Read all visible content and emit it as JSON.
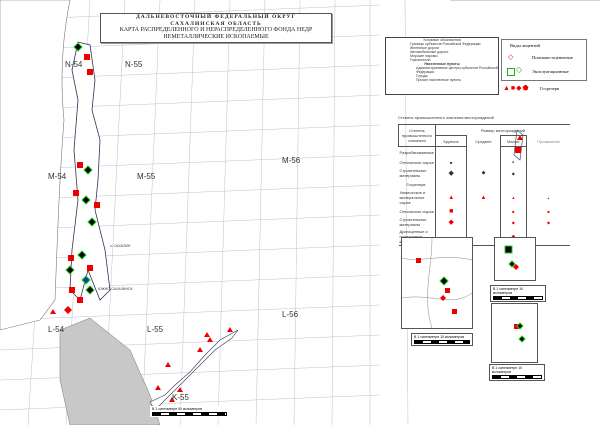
{
  "title": {
    "line1": "ДАЛЬНЕВОСТОЧНЫЙ ФЕДЕРАЛЬНЫЙ ОКРУГ",
    "line2": "САХАЛИНСКАЯ ОБЛАСТЬ",
    "line3": "КАРТА РАСПРЕДЕЛЕННОГО И НЕРАСПРЕДЕЛЕННОГО ФОНДА НЕДР",
    "line4": "НЕМЕТАЛЛИЧЕСКИЕ ИСКОПАЕМЫЕ"
  },
  "sheets": [
    "N-54",
    "N-55",
    "M-54",
    "M-55",
    "M-56",
    "L-54",
    "L-55",
    "L-56",
    "K-55"
  ],
  "place_labels": {
    "sakhalinsk": "ЮЖНО-САХАЛИНСК",
    "gulf": "з. САХАЛИН"
  },
  "legend": {
    "title": "Условные обозначения",
    "items": [
      "Границы субъектов Российской Федерации",
      "Железные дороги",
      "Автомобильные дороги",
      "Морские паромы",
      "Горизонтали"
    ],
    "settlements_title": "Населенные пункты",
    "settlements": [
      "Административные центры субъектов Российской Федерации",
      "Города",
      "Прочие населенные пункты"
    ]
  },
  "licenses": {
    "title": "Виды лицензий",
    "exploration": "Поисково-оценочные",
    "production": "Эксплуатационные",
    "reserve": "Госрезерв"
  },
  "table": {
    "caption": "Степень промышленного освоения месторождений",
    "col_stage": "Степень промышленного освоения",
    "col_size": "Размер месторождений",
    "sizes": [
      "Крупное",
      "Среднее",
      "Малое",
      "Проявление"
    ],
    "rows": [
      "Разрабатываемые",
      "Оптическое сырье",
      "Строительные материалы",
      "Госрезерв",
      "Химическое и минеральное сырье",
      "Оптическое сырье",
      "Строительные материалы",
      "Драгоценные и поделочные камни"
    ]
  },
  "scales": {
    "main": "В 1 сантиметре 50 километров",
    "inset": "В 1 сантиметре 10 километров"
  },
  "colors": {
    "exploration": "#e00000",
    "production": "#2a2",
    "developed": "#000000",
    "reserve": "#e00000",
    "land_foreign": "#c8c8c8",
    "grid": "#aab8c8"
  }
}
